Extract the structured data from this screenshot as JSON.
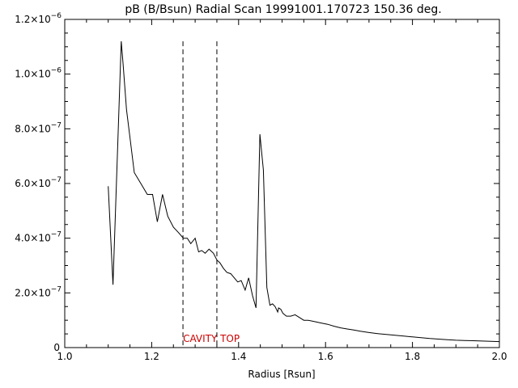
{
  "chart_data": {
    "type": "line",
    "title": "pB (B/Bsun) Radial Scan 19991001.170723 150.36 deg.",
    "xlabel": "Radius [Rsun]",
    "ylabel": "",
    "xlim": [
      1.0,
      2.0
    ],
    "ylim": [
      0,
      1.2e-06
    ],
    "x_ticks": [
      1.0,
      1.2,
      1.4,
      1.6,
      1.8,
      2.0
    ],
    "x_tick_labels": [
      "1.0",
      "1.2",
      "1.4",
      "1.6",
      "1.8",
      "2.0"
    ],
    "y_ticks": [
      0,
      2e-07,
      4e-07,
      6e-07,
      8e-07,
      1e-06,
      1.2e-06
    ],
    "y_tick_labels": [
      {
        "mantissa": "0",
        "exponent": ""
      },
      {
        "mantissa": "2.0×10",
        "exponent": "−7"
      },
      {
        "mantissa": "4.0×10",
        "exponent": "−7"
      },
      {
        "mantissa": "6.0×10",
        "exponent": "−7"
      },
      {
        "mantissa": "8.0×10",
        "exponent": "−7"
      },
      {
        "mantissa": "1.0×10",
        "exponent": "−6"
      },
      {
        "mantissa": "1.2×10",
        "exponent": "−6"
      }
    ],
    "grid": false,
    "series": [
      {
        "line_color": "#000000",
        "x": [
          1.1,
          1.111,
          1.13,
          1.134,
          1.142,
          1.15,
          1.16,
          1.175,
          1.19,
          1.202,
          1.213,
          1.225,
          1.237,
          1.25,
          1.262,
          1.273,
          1.282,
          1.29,
          1.3,
          1.308,
          1.315,
          1.323,
          1.332,
          1.342,
          1.35,
          1.357,
          1.365,
          1.373,
          1.382,
          1.39,
          1.398,
          1.406,
          1.415,
          1.423,
          1.432,
          1.44,
          1.449,
          1.457,
          1.465,
          1.472,
          1.478,
          1.484,
          1.49,
          1.492,
          1.497,
          1.502,
          1.51,
          1.52,
          1.53,
          1.54,
          1.55,
          1.56,
          1.575,
          1.59,
          1.605,
          1.62,
          1.635,
          1.65,
          1.665,
          1.68,
          1.7,
          1.72,
          1.74,
          1.76,
          1.78,
          1.8,
          1.82,
          1.84,
          1.86,
          1.88,
          1.9,
          1.92,
          1.94,
          1.96,
          1.98,
          2.0
        ],
        "y": [
          5.9e-07,
          2.3e-07,
          1.12e-06,
          1.04e-06,
          8.7e-07,
          7.7e-07,
          6.4e-07,
          6e-07,
          5.6e-07,
          5.6e-07,
          4.6e-07,
          5.6e-07,
          4.8e-07,
          4.4e-07,
          4.2e-07,
          4e-07,
          4e-07,
          3.8e-07,
          4e-07,
          3.5e-07,
          3.55e-07,
          3.45e-07,
          3.6e-07,
          3.45e-07,
          3.2e-07,
          3.1e-07,
          2.9e-07,
          2.75e-07,
          2.7e-07,
          2.55e-07,
          2.4e-07,
          2.45e-07,
          2.1e-07,
          2.55e-07,
          1.9e-07,
          1.45e-07,
          7.8e-07,
          6.5e-07,
          2.2e-07,
          1.55e-07,
          1.6e-07,
          1.5e-07,
          1.3e-07,
          1.45e-07,
          1.4e-07,
          1.25e-07,
          1.15e-07,
          1.15e-07,
          1.2e-07,
          1.1e-07,
          1e-07,
          1e-07,
          9.5e-08,
          9e-08,
          8.5e-08,
          7.8e-08,
          7.2e-08,
          6.8e-08,
          6.4e-08,
          6e-08,
          5.5e-08,
          5.1e-08,
          4.8e-08,
          4.5e-08,
          4.2e-08,
          3.9e-08,
          3.6e-08,
          3.3e-08,
          3.1e-08,
          2.9e-08,
          2.7e-08,
          2.6e-08,
          2.5e-08,
          2.4e-08,
          2.3e-08,
          2.2e-08
        ]
      }
    ],
    "reference_lines": [
      {
        "x": 1.272,
        "style": "dashed",
        "y_top": 1.12e-06
      },
      {
        "x": 1.35,
        "style": "dashed",
        "y_top": 1.12e-06
      }
    ],
    "annotations": [
      {
        "text": "CAVITY TOP",
        "x": 1.272,
        "y": 3.3e-08,
        "color": "#cc0000"
      }
    ]
  }
}
